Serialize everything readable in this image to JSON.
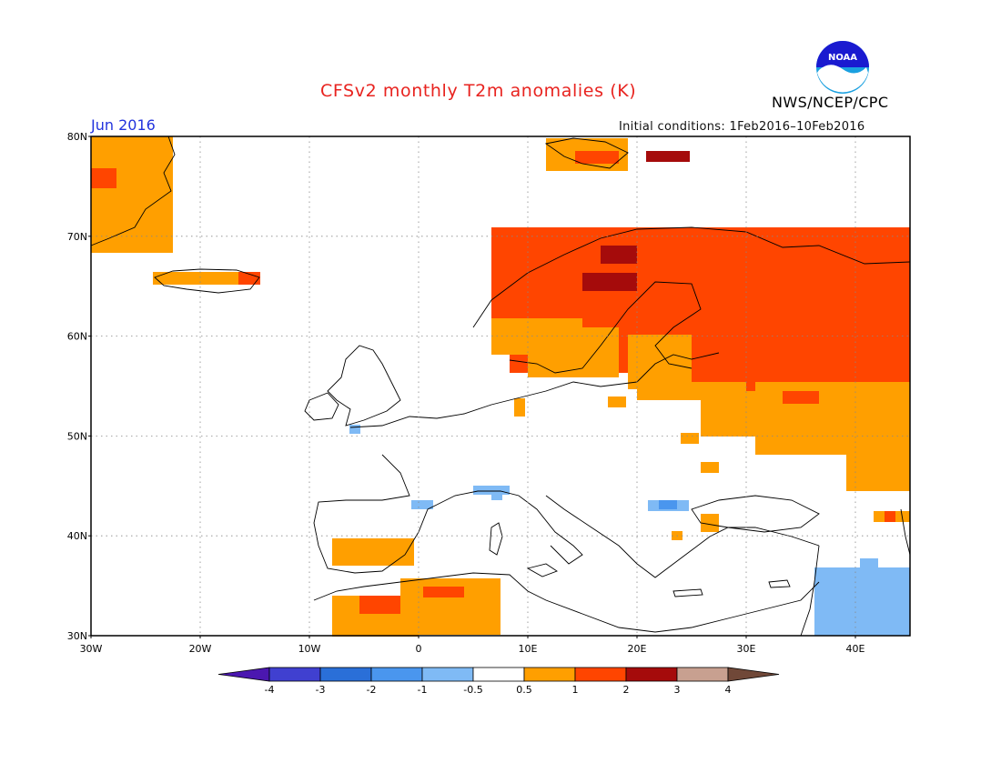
{
  "header": {
    "title": "CFSv2 monthly T2m anomalies (K)",
    "month": "Jun 2016",
    "initial_conditions": "Initial conditions: 1Feb2016–10Feb2016",
    "org": "NWS/NCEP/CPC",
    "logo_text": "NOAA"
  },
  "map": {
    "lat_labels": [
      "80N",
      "70N",
      "60N",
      "50N",
      "40N",
      "30N"
    ],
    "lon_labels": [
      "30W",
      "20W",
      "10W",
      "0",
      "10E",
      "20E",
      "30E",
      "40E"
    ],
    "extent": {
      "lon": [
        -30,
        45
      ],
      "lat": [
        30,
        80
      ]
    }
  },
  "colorbar": {
    "labels": [
      "-4",
      "-3",
      "-2",
      "-1",
      "-0.5",
      "0.5",
      "1",
      "2",
      "3",
      "4"
    ],
    "colors": [
      "#4b17b0",
      "#4040d0",
      "#2a6fd8",
      "#4a96ee",
      "#7fbaf5",
      "#ffffff",
      "#ff9f00",
      "#ff4500",
      "#a50b0b",
      "#c8a090",
      "#704838"
    ]
  },
  "colors": {
    "pos1": "#ff9f00",
    "pos2": "#ff4500",
    "pos3": "#a50b0b",
    "neg1": "#7fbaf5",
    "neg2": "#4a96ee"
  }
}
